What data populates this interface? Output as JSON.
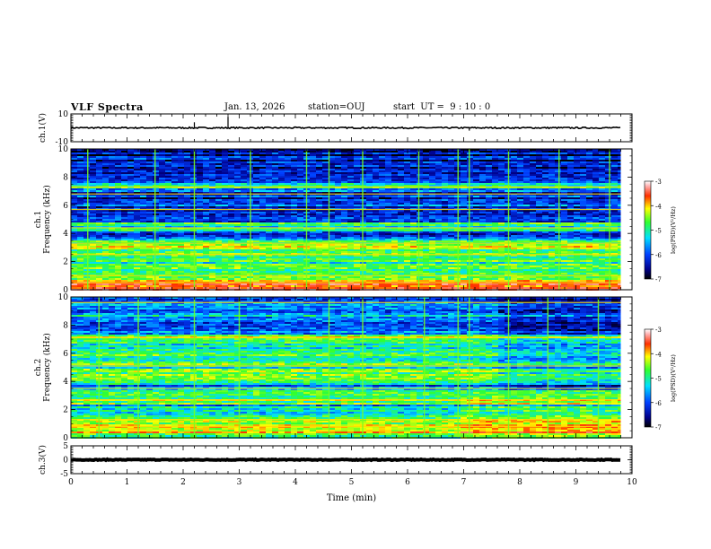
{
  "header": {
    "title": "VLF Spectra",
    "date": "Jan. 13, 2026",
    "station": "station=OUJ",
    "start": "start  UT =  9 : 10 : 0"
  },
  "chart_data": [
    {
      "type": "line",
      "name": "ch1-waveform",
      "ylabel": "ch.1(V)",
      "ylim": [
        -10,
        10
      ],
      "yticks": [
        10,
        -10
      ],
      "xlim": [
        0,
        10
      ],
      "baseline": 0,
      "noise_amplitude": 1,
      "spikes": [
        {
          "x": 2.2,
          "y": 4
        },
        {
          "x": 2.8,
          "y": 8
        },
        {
          "x": 7.1,
          "y": -2
        }
      ]
    },
    {
      "type": "heatmap",
      "name": "ch1-spectrogram",
      "ylabel": "ch.1\nFrequency (kHz)",
      "ylim": [
        0,
        10
      ],
      "yticks": [
        0,
        2,
        4,
        6,
        8,
        10
      ],
      "xlim": [
        0,
        9.8
      ],
      "colorbar": {
        "label": "log(PSD)(V²/Hz)",
        "range": [
          -7,
          -3
        ],
        "ticks": [
          -3,
          -4,
          -5,
          -6,
          -7
        ]
      },
      "bands": [
        {
          "y0": 0.0,
          "y1": 0.3,
          "level": -3.5
        },
        {
          "y0": 0.3,
          "y1": 0.8,
          "level": -4.2
        },
        {
          "y0": 0.8,
          "y1": 1.8,
          "level": -5.0
        },
        {
          "y0": 1.8,
          "y1": 2.6,
          "level": -5.3
        },
        {
          "y0": 2.6,
          "y1": 3.6,
          "level": -4.9
        },
        {
          "y0": 3.6,
          "y1": 4.2,
          "level": -6.3
        },
        {
          "y0": 4.2,
          "y1": 4.8,
          "level": -5.4
        },
        {
          "y0": 4.8,
          "y1": 7.2,
          "level": -6.4
        },
        {
          "y0": 7.2,
          "y1": 7.6,
          "level": -5.2
        },
        {
          "y0": 7.6,
          "y1": 10.0,
          "level": -6.6
        }
      ],
      "lines": [
        0.5,
        1.0,
        2.5,
        3.3,
        4.4,
        5.7,
        6.8,
        7.3
      ],
      "spikes": [
        0.3,
        1.5,
        2.2,
        3.2,
        4.2,
        4.6,
        5.2,
        6.2,
        6.9,
        7.1,
        7.8,
        8.7,
        9.6
      ]
    },
    {
      "type": "heatmap",
      "name": "ch2-spectrogram",
      "ylabel": "ch.2\nFrequency (kHz)",
      "ylim": [
        0,
        10
      ],
      "yticks": [
        0,
        2,
        4,
        6,
        8,
        10
      ],
      "xlim": [
        0,
        9.8
      ],
      "colorbar": {
        "label": "log(PSD)(V²/Hz)",
        "range": [
          -7,
          -3
        ],
        "ticks": [
          -3,
          -4,
          -5,
          -6,
          -7
        ]
      },
      "bands": [
        {
          "y0": 0.0,
          "y1": 0.4,
          "level": -5.4
        },
        {
          "y0": 0.4,
          "y1": 1.0,
          "level": -4.6
        },
        {
          "y0": 1.0,
          "y1": 1.8,
          "level": -5.2
        },
        {
          "y0": 1.8,
          "y1": 2.4,
          "level": -5.8
        },
        {
          "y0": 2.4,
          "y1": 3.4,
          "level": -5.0
        },
        {
          "y0": 3.4,
          "y1": 4.0,
          "level": -5.9
        },
        {
          "y0": 4.0,
          "y1": 7.0,
          "level": -5.3
        },
        {
          "y0": 7.0,
          "y1": 7.4,
          "level": -4.9
        },
        {
          "y0": 7.4,
          "y1": 10.0,
          "level": -6.0
        }
      ],
      "lines": [
        0.8,
        1.3,
        2.7,
        3.5,
        5.1,
        7.1,
        9.6
      ],
      "spikes": [
        0.5,
        1.2,
        2.2,
        3.0,
        4.6,
        5.2,
        6.3,
        6.9,
        7.1,
        7.8,
        8.5,
        9.4
      ]
    },
    {
      "type": "line",
      "name": "ch3-waveform",
      "ylabel": "ch.3(V)",
      "ylim": [
        -5,
        5
      ],
      "yticks": [
        5,
        0,
        -5
      ],
      "xlim": [
        0,
        10
      ],
      "baseline": 0,
      "noise_amplitude": 0.3
    }
  ],
  "xaxis": {
    "label": "Time (min)",
    "range": [
      0,
      10
    ],
    "ticks": [
      0,
      1,
      2,
      3,
      4,
      5,
      6,
      7,
      8,
      9,
      10
    ]
  }
}
